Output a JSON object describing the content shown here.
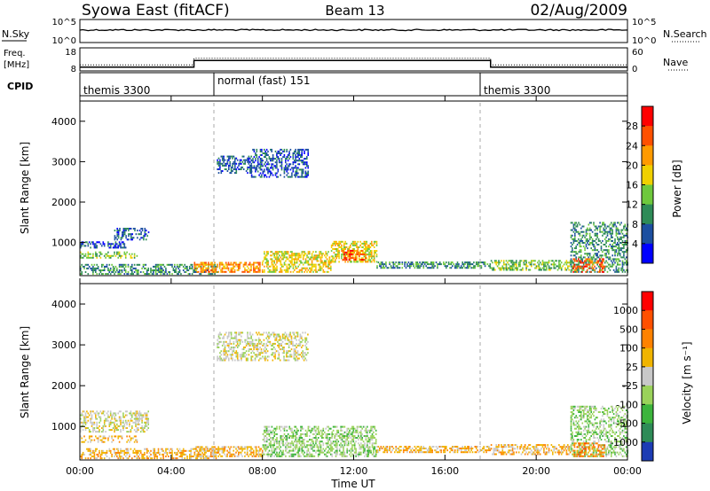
{
  "header": {
    "title": "Syowa East (fitACF)",
    "beam": "Beam 13",
    "date": "02/Aug/2009"
  },
  "strips": {
    "nsky": {
      "label": "N.Sky",
      "left_ticks": [
        "10^5",
        "10^0"
      ],
      "right_ticks": [
        "10^5",
        "10^0"
      ],
      "right_label": "N.Search"
    },
    "freq": {
      "label_line1": "Freq.",
      "label_line2": "[MHz]",
      "left_ticks": [
        "18",
        "8"
      ],
      "right_ticks": [
        "60",
        "0"
      ],
      "right_label": "Nave",
      "steps": [
        {
          "from": "00:00",
          "to": "05:00",
          "mhz": 9.6
        },
        {
          "from": "05:00",
          "to": "18:00",
          "mhz": 12.5
        },
        {
          "from": "18:00",
          "to": "24:00",
          "mhz": 9.6
        }
      ]
    },
    "cpid": {
      "label": "CPID",
      "segments": [
        {
          "start": "00:00",
          "end": "06:00",
          "name": "themis 3300"
        },
        {
          "start": "06:00",
          "end": "18:00",
          "name": "normal (fast) 151"
        },
        {
          "start": "18:00",
          "end": "24:00",
          "name": "themis 3300"
        }
      ]
    }
  },
  "chart_data": [
    {
      "type": "heatmap",
      "title": "",
      "ylabel": "Slant Range [km]",
      "xlabel": "",
      "ylim": [
        180,
        4500
      ],
      "yticks": [
        "1000",
        "2000",
        "3000",
        "4000"
      ],
      "colorbar": {
        "label": "Power [dB]",
        "levels": [
          "4",
          "8",
          "12",
          "16",
          "20",
          "24",
          "28"
        ],
        "colors": [
          "#0000ff",
          "#1c4fa0",
          "#2e8b57",
          "#6ec83c",
          "#f0d000",
          "#ff9a00",
          "#ff5000",
          "#ff0000"
        ]
      },
      "regions": [
        {
          "t0": 0.0,
          "t1": 2.0,
          "r0": 850,
          "r1": 1000,
          "level": 1,
          "density": 0.5
        },
        {
          "t0": 1.5,
          "t1": 3.0,
          "r0": 1050,
          "r1": 1350,
          "level": 1,
          "density": 0.45
        },
        {
          "t0": 0.0,
          "t1": 2.5,
          "r0": 600,
          "r1": 750,
          "level": 3,
          "density": 0.35
        },
        {
          "t0": 0.0,
          "t1": 6.0,
          "r0": 200,
          "r1": 450,
          "level": 2,
          "density": 0.45
        },
        {
          "t0": 5.0,
          "t1": 8.0,
          "r0": 250,
          "r1": 500,
          "level": 5,
          "density": 0.6
        },
        {
          "t0": 6.0,
          "t1": 7.5,
          "r0": 2700,
          "r1": 3150,
          "level": 1,
          "density": 0.5
        },
        {
          "t0": 7.5,
          "t1": 10.0,
          "r0": 2600,
          "r1": 3300,
          "level": 1,
          "density": 0.45
        },
        {
          "t0": 8.0,
          "t1": 11.0,
          "r0": 250,
          "r1": 750,
          "level": 4,
          "density": 0.55
        },
        {
          "t0": 11.0,
          "t1": 13.0,
          "r0": 500,
          "r1": 1000,
          "level": 4,
          "density": 0.55
        },
        {
          "t0": 11.5,
          "t1": 12.5,
          "r0": 550,
          "r1": 800,
          "level": 6,
          "density": 0.5
        },
        {
          "t0": 13.0,
          "t1": 18.0,
          "r0": 350,
          "r1": 500,
          "level": 2,
          "density": 0.55
        },
        {
          "t0": 18.0,
          "t1": 21.5,
          "r0": 300,
          "r1": 550,
          "level": 3,
          "density": 0.5
        },
        {
          "t0": 21.5,
          "t1": 24.0,
          "r0": 250,
          "r1": 1500,
          "level": 2,
          "density": 0.45
        },
        {
          "t0": 21.6,
          "t1": 23.0,
          "r0": 250,
          "r1": 600,
          "level": 6,
          "density": 0.45
        }
      ]
    },
    {
      "type": "heatmap",
      "title": "",
      "ylabel": "Slant Range [km]",
      "xlabel": "Time UT",
      "ylim": [
        180,
        4500
      ],
      "yticks": [
        "1000",
        "2000",
        "3000",
        "4000"
      ],
      "xticks": [
        "00:00",
        "04:00",
        "08:00",
        "12:00",
        "16:00",
        "20:00",
        "00:00"
      ],
      "colorbar": {
        "label": "Velocity [m s⁻¹]",
        "levels": [
          "1000",
          "500",
          "100",
          "25",
          "-25",
          "-100",
          "-500",
          "-1000"
        ],
        "colors": [
          "#1c3cb4",
          "#2e8b57",
          "#3cb43c",
          "#9ad25a",
          "#c8c8c8",
          "#f0b400",
          "#ff8200",
          "#ff5000",
          "#ff0000"
        ]
      },
      "regions": [
        {
          "t0": 0.0,
          "t1": 3.0,
          "r0": 850,
          "r1": 1350,
          "level": 4,
          "density": 0.45
        },
        {
          "t0": 0.0,
          "t1": 2.5,
          "r0": 600,
          "r1": 750,
          "level": 5,
          "density": 0.35
        },
        {
          "t0": 0.0,
          "t1": 6.0,
          "r0": 200,
          "r1": 450,
          "level": 5,
          "density": 0.45
        },
        {
          "t0": 5.0,
          "t1": 8.0,
          "r0": 250,
          "r1": 500,
          "level": 5,
          "density": 0.55
        },
        {
          "t0": 6.0,
          "t1": 10.0,
          "r0": 2600,
          "r1": 3300,
          "level": 4,
          "density": 0.45
        },
        {
          "t0": 8.0,
          "t1": 13.0,
          "r0": 250,
          "r1": 1000,
          "level": 3,
          "density": 0.5
        },
        {
          "t0": 13.0,
          "t1": 18.0,
          "r0": 350,
          "r1": 500,
          "level": 5,
          "density": 0.55
        },
        {
          "t0": 18.0,
          "t1": 21.5,
          "r0": 300,
          "r1": 550,
          "level": 5,
          "density": 0.5
        },
        {
          "t0": 21.5,
          "t1": 24.0,
          "r0": 250,
          "r1": 1500,
          "level": 3,
          "density": 0.45
        },
        {
          "t0": 21.6,
          "t1": 23.0,
          "r0": 250,
          "r1": 600,
          "level": 6,
          "density": 0.4
        }
      ]
    }
  ]
}
